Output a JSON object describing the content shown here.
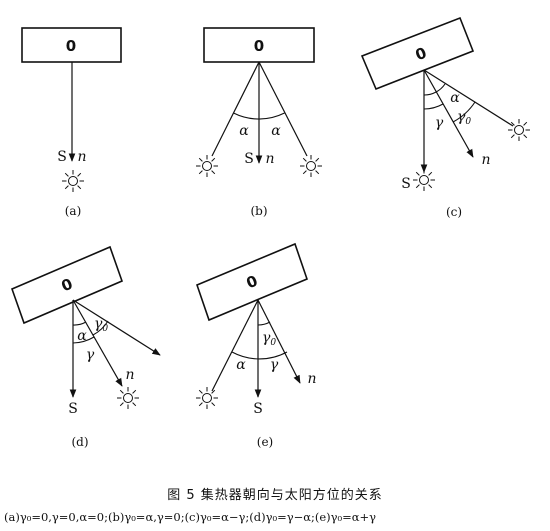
{
  "labels": {
    "box": "0",
    "south": "S",
    "normal": "n",
    "alpha": "α",
    "gamma": "γ",
    "gamma0_base": "γ",
    "gamma0_sub": "0"
  },
  "panels": [
    {
      "id": "a",
      "label": "(a)"
    },
    {
      "id": "b",
      "label": "(b)"
    },
    {
      "id": "c",
      "label": "(c)"
    },
    {
      "id": "d",
      "label": "(d)"
    },
    {
      "id": "e",
      "label": "(e)"
    }
  ],
  "caption": {
    "title": "图 5   集热器朝向与太阳方位的关系",
    "formula": "(a)γ₀=0,γ=0,α=0;(b)γ₀=α,γ=0;(c)γ₀=α−γ;(d)γ₀=γ−α;(e)γ₀=α+γ"
  }
}
